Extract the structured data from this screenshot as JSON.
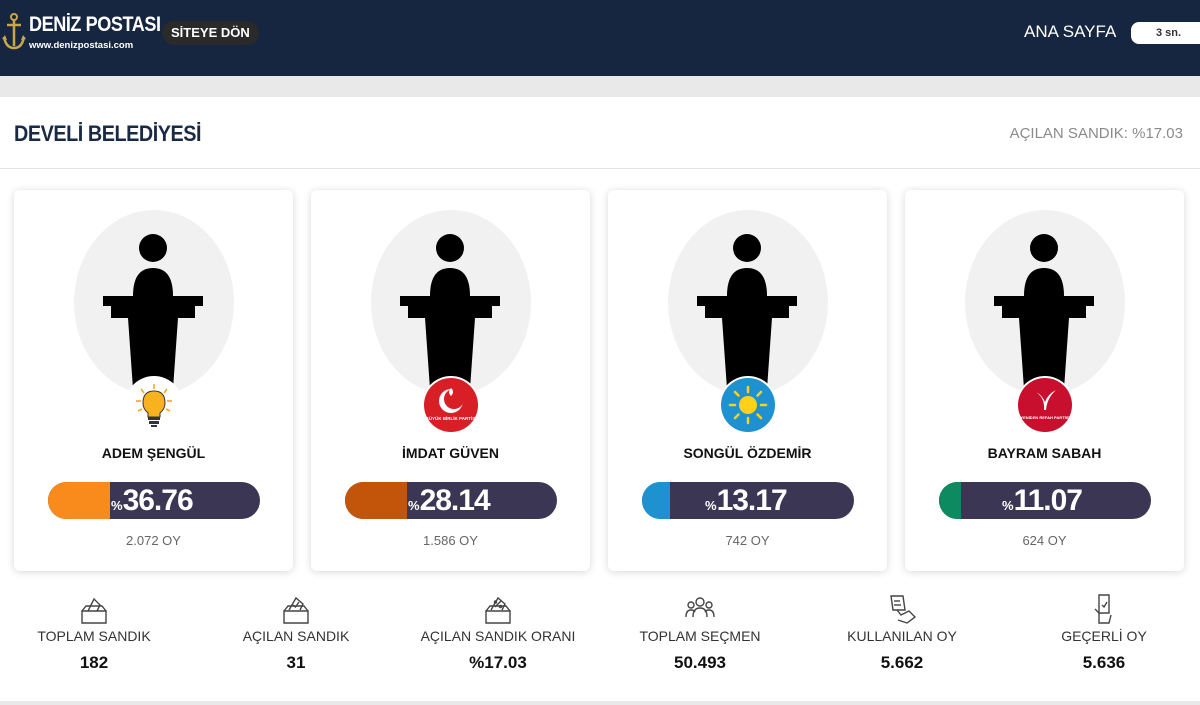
{
  "header": {
    "logo_title": "DENİZ POSTASI",
    "logo_url": "www.denizpostasi.com",
    "back_button": "SİTEYE DÖN",
    "home_link": "ANA SAYFA",
    "refresh_label": "3 sn."
  },
  "page": {
    "title": "DEVELİ BELEDİYESİ",
    "opened_ballot": "AÇILAN SANDIK: %17.03"
  },
  "candidates": [
    {
      "name": "ADEM ŞENGÜL",
      "percent": "36.76",
      "percent_sym": "%",
      "votes": "2.072 OY",
      "bar_color": "#f88b1c",
      "party_icon": "ak-parti-bulb-icon"
    },
    {
      "name": "İMDAT GÜVEN",
      "percent": "28.14",
      "percent_sym": "%",
      "votes": "1.586 OY",
      "bar_color": "#c3550b",
      "party_icon": "buyuk-birlik-partisi-icon",
      "party_logo_text": "BÜYÜK BİRLİK PARTİSİ"
    },
    {
      "name": "SONGÜL ÖZDEMİR",
      "percent": "13.17",
      "percent_sym": "%",
      "votes": "742 OY",
      "bar_color": "#1e92d0",
      "party_icon": "iyi-parti-sun-icon"
    },
    {
      "name": "BAYRAM SABAH",
      "percent": "11.07",
      "percent_sym": "%",
      "votes": "624 OY",
      "bar_color": "#0d8a5f",
      "party_icon": "yeniden-refah-partisi-icon",
      "party_logo_text": "YENİDEN REFAH PARTİSİ"
    }
  ],
  "stats": [
    {
      "label": "TOPLAM SANDIK",
      "value": "182",
      "icon": "ballot-box-icon"
    },
    {
      "label": "AÇILAN SANDIK",
      "value": "31",
      "icon": "ballot-box-check-icon"
    },
    {
      "label": "AÇILAN SANDIK ORANI",
      "value": "%17.03",
      "icon": "ballot-box-percent-icon"
    },
    {
      "label": "TOPLAM SEÇMEN",
      "value": "50.493",
      "icon": "voters-group-icon"
    },
    {
      "label": "KULLANILAN OY",
      "value": "5.662",
      "icon": "hand-ballot-icon"
    },
    {
      "label": "GEÇERLİ OY",
      "value": "5.636",
      "icon": "valid-vote-icon"
    }
  ]
}
